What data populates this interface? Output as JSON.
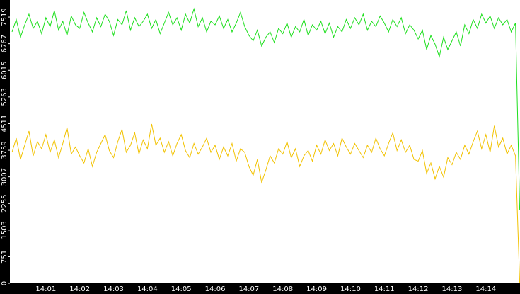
{
  "chart_data": {
    "type": "line",
    "categories": [
      null,
      null,
      null,
      null,
      null,
      null,
      null,
      null,
      "14:01",
      null,
      null,
      null,
      null,
      null,
      null,
      null,
      "14:02",
      null,
      null,
      null,
      null,
      null,
      null,
      null,
      "14:03",
      null,
      null,
      null,
      null,
      null,
      null,
      null,
      "14:04",
      null,
      null,
      null,
      null,
      null,
      null,
      null,
      "14:05",
      null,
      null,
      null,
      null,
      null,
      null,
      null,
      "14:06",
      null,
      null,
      null,
      null,
      null,
      null,
      null,
      "14:07",
      null,
      null,
      null,
      null,
      null,
      null,
      null,
      "14:08",
      null,
      null,
      null,
      null,
      null,
      null,
      null,
      "14:09",
      null,
      null,
      null,
      null,
      null,
      null,
      null,
      "14:10",
      null,
      null,
      null,
      null,
      null,
      null,
      null,
      "14:11",
      null,
      null,
      null,
      null,
      null,
      null,
      null,
      "14:12",
      null,
      null,
      null,
      null,
      null,
      null,
      null,
      "14:13",
      null,
      null,
      null,
      null,
      null,
      null,
      null,
      "14:14",
      null,
      null,
      null,
      null,
      null,
      null,
      null,
      null
    ],
    "series": [
      {
        "color": "#1edf1e",
        "values": [
          7100,
          7450,
          6950,
          7300,
          7600,
          7200,
          7400,
          7050,
          7500,
          7250,
          7700,
          7150,
          7400,
          7000,
          7550,
          7300,
          7200,
          7650,
          7350,
          7100,
          7500,
          7250,
          7600,
          7400,
          7000,
          7450,
          7300,
          7700,
          7150,
          7500,
          7250,
          7400,
          7600,
          7200,
          7450,
          7050,
          7350,
          7650,
          7300,
          7500,
          7150,
          7600,
          7350,
          7750,
          7250,
          7500,
          7100,
          7400,
          7300,
          7550,
          7200,
          7450,
          7100,
          7350,
          7650,
          7250,
          7000,
          6850,
          7150,
          6700,
          6950,
          7100,
          6800,
          7200,
          7050,
          7350,
          6950,
          7250,
          7100,
          7450,
          7000,
          7300,
          7150,
          7400,
          7050,
          7350,
          6950,
          7250,
          7100,
          7450,
          7200,
          7500,
          7300,
          7600,
          7150,
          7400,
          7250,
          7550,
          7350,
          7100,
          7450,
          7250,
          7500,
          7050,
          7300,
          7150,
          6900,
          7150,
          6600,
          7000,
          6750,
          6400,
          6950,
          6600,
          6850,
          7100,
          6700,
          7300,
          7050,
          7450,
          7200,
          7600,
          7350,
          7550,
          7200,
          7500,
          7300,
          7450,
          7100,
          7350,
          2060
        ]
      },
      {
        "color": "#f2c200",
        "values": [
          3700,
          4100,
          3500,
          3900,
          4300,
          3600,
          4000,
          3800,
          4200,
          3700,
          4050,
          3550,
          3950,
          4400,
          3650,
          3850,
          3600,
          3400,
          3800,
          3300,
          3700,
          3950,
          4200,
          3750,
          3550,
          4000,
          4350,
          3700,
          3900,
          4250,
          3650,
          4050,
          3800,
          4500,
          3900,
          4100,
          3700,
          4000,
          3600,
          3950,
          4200,
          3750,
          3550,
          3950,
          3650,
          3850,
          4100,
          3700,
          3900,
          3500,
          3850,
          3600,
          3950,
          3450,
          3800,
          3700,
          3300,
          3050,
          3500,
          2850,
          3200,
          3600,
          3400,
          3800,
          3650,
          4000,
          3550,
          3800,
          3300,
          3600,
          3750,
          3450,
          3900,
          3650,
          4050,
          3750,
          3950,
          3600,
          4100,
          3850,
          3650,
          3950,
          3750,
          3550,
          3900,
          3700,
          4100,
          3800,
          3600,
          3950,
          4250,
          3750,
          4050,
          3700,
          3900,
          3500,
          3450,
          3750,
          3100,
          3400,
          2950,
          3300,
          3000,
          3550,
          3350,
          3700,
          3500,
          3900,
          3650,
          4000,
          4300,
          3800,
          4200,
          3700,
          4450,
          3850,
          4100,
          3650,
          3900,
          3600,
          0
        ]
      }
    ],
    "ylim": [
      0,
      8000
    ],
    "yticks": [
      0,
      751,
      1503,
      2255,
      3007,
      3759,
      4511,
      5263,
      6015,
      6767,
      7519
    ]
  }
}
